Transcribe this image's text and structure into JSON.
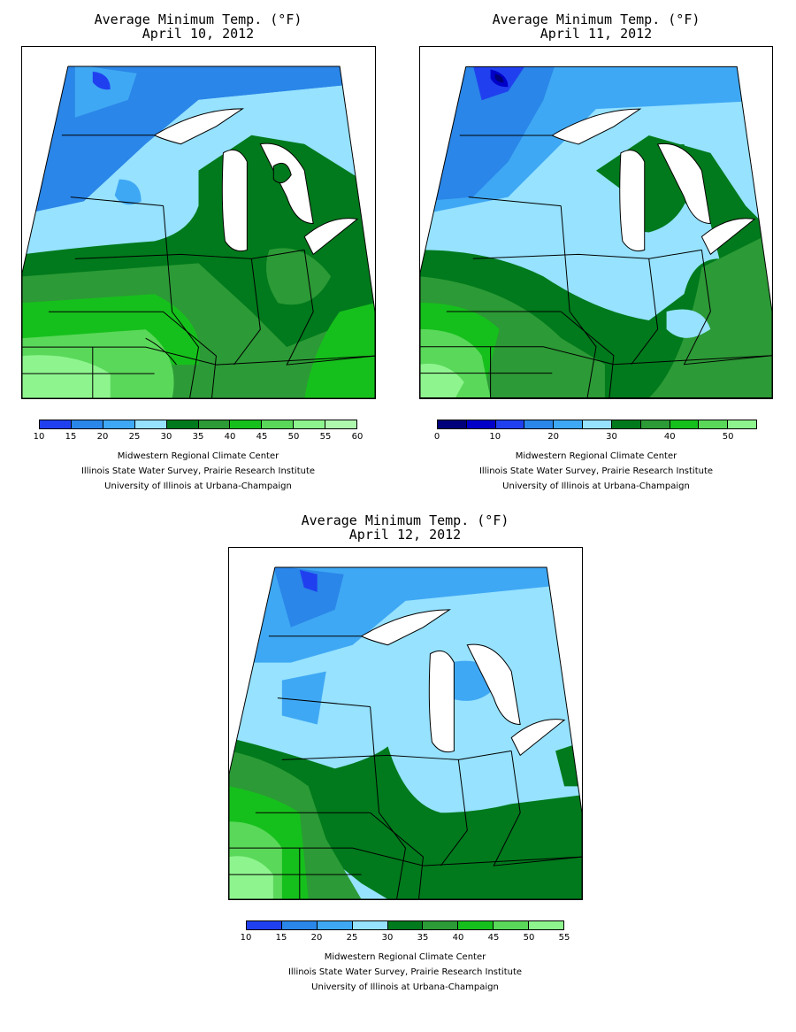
{
  "colors": {
    "c0_5": "#00007a",
    "c5_10": "#0000c8",
    "c10_15": "#2040f0",
    "c15_20": "#2a86e8",
    "c20_25": "#3fa8f4",
    "c25_30": "#96e2ff",
    "c30_35": "#007a1c",
    "c35_40": "#2c9a36",
    "c40_45": "#16c01c",
    "c45_50": "#5ad85a",
    "c50_55": "#8ef58e",
    "c55_60": "#aef8ae"
  },
  "maps": [
    {
      "title_line1": "Average Minimum Temp. (°F)",
      "title_line2": "April 10, 2012",
      "legend": {
        "ticks": [
          "10",
          "15",
          "20",
          "25",
          "30",
          "35",
          "40",
          "45",
          "50",
          "55",
          "60"
        ],
        "colors": [
          "#2040f0",
          "#2a86e8",
          "#3fa8f4",
          "#96e2ff",
          "#007a1c",
          "#2c9a36",
          "#16c01c",
          "#5ad85a",
          "#8ef58e",
          "#aef8ae"
        ]
      },
      "credits": [
        "Midwestern Regional Climate Center",
        "Illinois State Water Survey, Prairie Research Institute",
        "University of Illinois at Urbana-Champaign"
      ]
    },
    {
      "title_line1": "Average Minimum Temp. (°F)",
      "title_line2": "April 11, 2012",
      "legend": {
        "ticks": [
          "0",
          "",
          "10",
          "",
          "20",
          "",
          "30",
          "",
          "40",
          "",
          "50",
          ""
        ],
        "colors": [
          "#00007a",
          "#0000c8",
          "#2040f0",
          "#2a86e8",
          "#3fa8f4",
          "#96e2ff",
          "#007a1c",
          "#2c9a36",
          "#16c01c",
          "#5ad85a",
          "#8ef58e"
        ]
      },
      "credits": [
        "Midwestern Regional Climate Center",
        "Illinois State Water Survey, Prairie Research Institute",
        "University of Illinois at Urbana-Champaign"
      ]
    },
    {
      "title_line1": "Average Minimum Temp. (°F)",
      "title_line2": "April 12, 2012",
      "legend": {
        "ticks": [
          "10",
          "15",
          "20",
          "25",
          "30",
          "35",
          "40",
          "45",
          "50",
          "55"
        ],
        "colors": [
          "#2040f0",
          "#2a86e8",
          "#3fa8f4",
          "#96e2ff",
          "#007a1c",
          "#2c9a36",
          "#16c01c",
          "#5ad85a",
          "#8ef58e"
        ]
      },
      "credits": [
        "Midwestern Regional Climate Center",
        "Illinois State Water Survey, Prairie Research Institute",
        "University of Illinois at Urbana-Champaign"
      ]
    }
  ]
}
